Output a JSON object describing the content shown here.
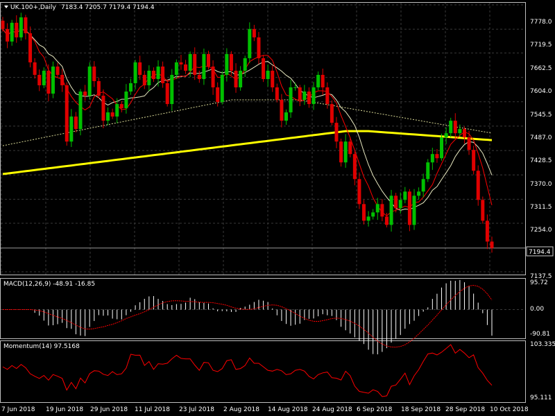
{
  "colors": {
    "background": "#000000",
    "grid": "#3a3a3a",
    "frame": "#bfbfbf",
    "bull": "#00c000",
    "bear": "#e00000",
    "ma_long": "#ffff00",
    "ma_fast": "#ff0000",
    "ma_mid": "#e8e8c0",
    "macd": "#ffffff",
    "signal": "#ff0000",
    "momentum": "#ff0000"
  },
  "header": {
    "triangle_icon": "down-triangle-icon",
    "symbol_title": "UK.100+,Daily",
    "ohlc_text": "7183.4 7205.7 7179.4 7194.4"
  },
  "chart_data": [
    {
      "type": "candlestick",
      "title": "UK.100+,Daily",
      "ylim": [
        7137.5,
        7778.0
      ],
      "price_ticks": [
        "7778.0",
        "7719.5",
        "7662.5",
        "7604.0",
        "7545.5",
        "7487.0",
        "7428.5",
        "7370.0",
        "7311.5",
        "7254.0",
        "7137.5"
      ],
      "last_price": "7194.4",
      "date_labels": [
        "7 Jun 2018",
        "19 Jun 2018",
        "29 Jun 2018",
        "11 Jul 2018",
        "23 Jul 2018",
        "2 Aug 2018",
        "14 Aug 2018",
        "24 Aug 2018",
        "6 Sep 2018",
        "18 Sep 2018",
        "28 Sep 2018",
        "10 Oct 2018"
      ],
      "closes": [
        7720,
        7690,
        7735,
        7700,
        7748,
        7710,
        7640,
        7610,
        7585,
        7620,
        7565,
        7630,
        7610,
        7585,
        7450,
        7510,
        7480,
        7570,
        7560,
        7630,
        7595,
        7560,
        7500,
        7520,
        7510,
        7540,
        7530,
        7570,
        7590,
        7640,
        7610,
        7585,
        7620,
        7600,
        7630,
        7590,
        7540,
        7610,
        7640,
        7635,
        7620,
        7660,
        7610,
        7600,
        7660,
        7630,
        7580,
        7545,
        7610,
        7660,
        7620,
        7580,
        7620,
        7650,
        7720,
        7700,
        7650,
        7600,
        7620,
        7580,
        7550,
        7500,
        7520,
        7580,
        7580,
        7550,
        7570,
        7540,
        7580,
        7610,
        7580,
        7540,
        7495,
        7450,
        7400,
        7450,
        7420,
        7360,
        7300,
        7260,
        7270,
        7280,
        7300,
        7270,
        7250,
        7320,
        7290,
        7310,
        7330,
        7250,
        7320,
        7330,
        7360,
        7400,
        7420,
        7410,
        7460,
        7470,
        7500,
        7470,
        7480,
        7460,
        7430,
        7380,
        7310,
        7260,
        7210,
        7194.4
      ]
    },
    {
      "type": "line",
      "title": "MACD(12,26,9) -48.91 -16.85",
      "ylim": [
        -90.81,
        95.72
      ],
      "ticks": [
        "95.72",
        "0.00",
        "-90.81"
      ],
      "series": [
        {
          "name": "MACD"
        },
        {
          "name": "Signal"
        }
      ]
    },
    {
      "type": "line",
      "title": "Momentum(14) 97.5168",
      "ylim": [
        95.111,
        103.3352
      ],
      "ticks": [
        "103.3352",
        "95.111"
      ]
    }
  ]
}
